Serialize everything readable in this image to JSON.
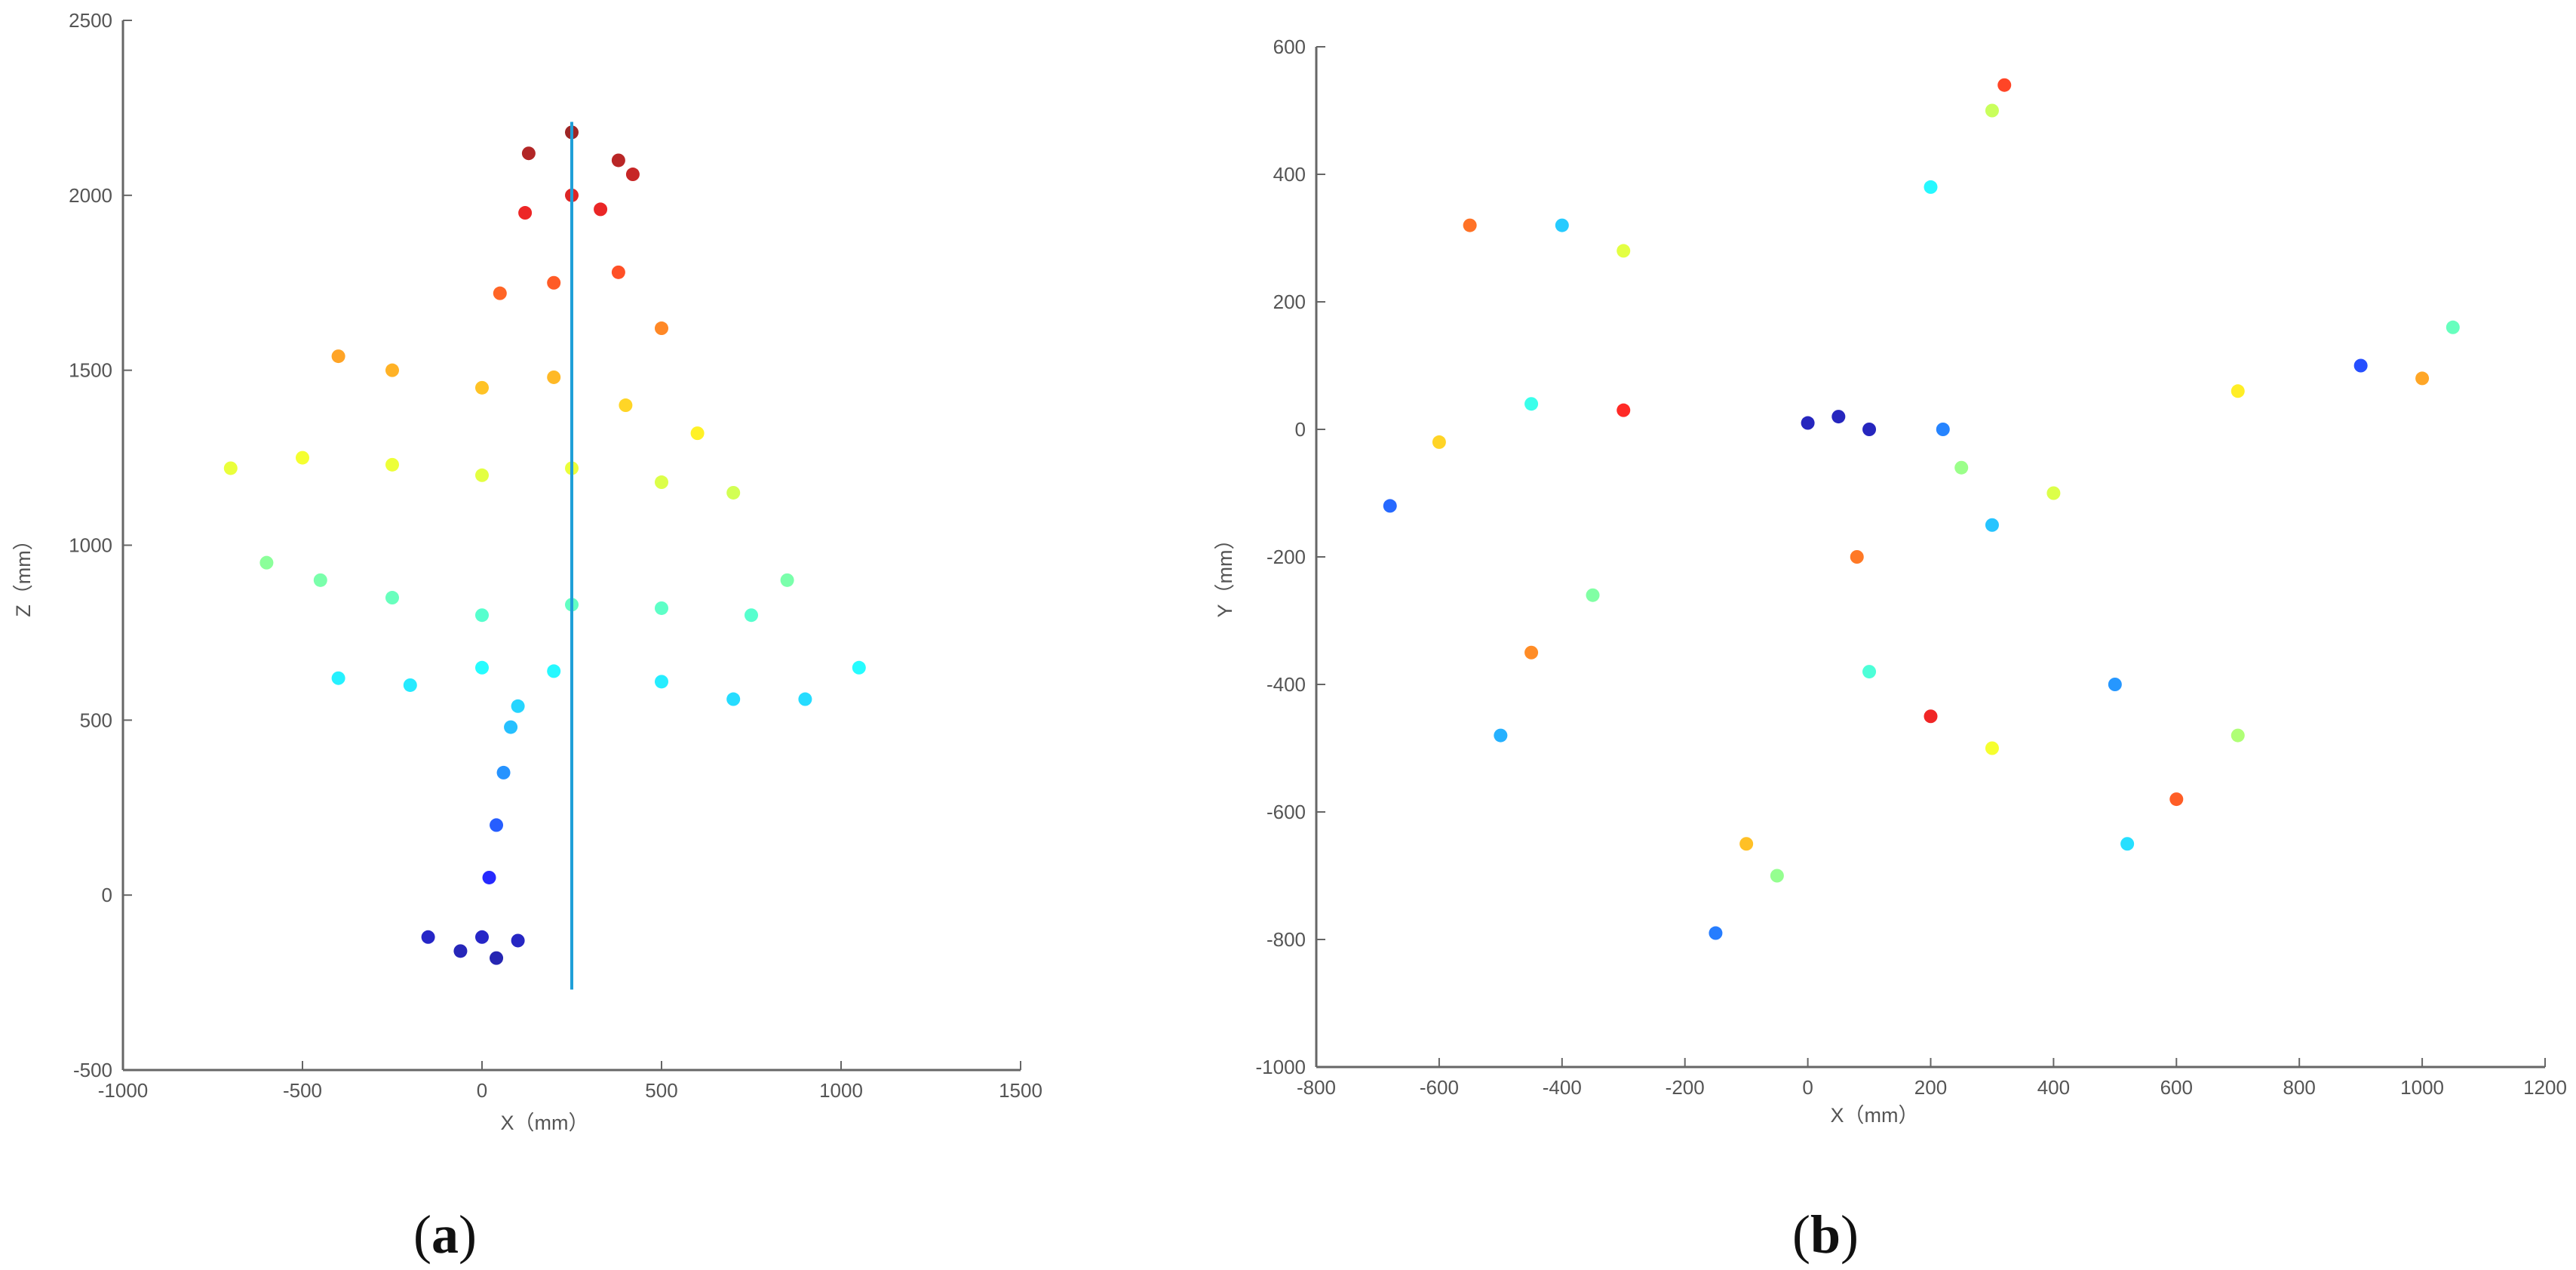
{
  "chart_data": [
    {
      "type": "scatter",
      "panel_label": "(a)",
      "panel_letter": "a",
      "xlabel": "X（mm）",
      "ylabel": "Z（mm）",
      "xlim": [
        -1000,
        1500
      ],
      "ylim": [
        -500,
        2500
      ],
      "xticks": [
        -1000,
        -500,
        0,
        500,
        1000,
        1500
      ],
      "yticks": [
        -500,
        0,
        500,
        1000,
        1500,
        2000,
        2500
      ],
      "grid": false,
      "colormap": "jet (by Z height)",
      "reference_line": {
        "x": 250,
        "y": [
          -270,
          2210
        ],
        "color": "#1f9fd8"
      },
      "series": [
        {
          "points": [
            [
              -150,
              -120
            ],
            [
              0,
              -120
            ],
            [
              100,
              -130
            ],
            [
              40,
              -180
            ],
            [
              -60,
              -160
            ],
            [
              20,
              50
            ],
            [
              40,
              200
            ],
            [
              60,
              350
            ],
            [
              80,
              480
            ],
            [
              100,
              540
            ],
            [
              -400,
              620
            ],
            [
              -200,
              600
            ],
            [
              0,
              650
            ],
            [
              200,
              640
            ],
            [
              500,
              610
            ],
            [
              700,
              560
            ],
            [
              900,
              560
            ],
            [
              1050,
              650
            ],
            [
              -600,
              950
            ],
            [
              -450,
              900
            ],
            [
              -250,
              850
            ],
            [
              0,
              800
            ],
            [
              250,
              830
            ],
            [
              500,
              820
            ],
            [
              750,
              800
            ],
            [
              850,
              900
            ],
            [
              -700,
              1220
            ],
            [
              -500,
              1250
            ],
            [
              -250,
              1230
            ],
            [
              0,
              1200
            ],
            [
              250,
              1220
            ],
            [
              500,
              1180
            ],
            [
              700,
              1150
            ],
            [
              -400,
              1540
            ],
            [
              -250,
              1500
            ],
            [
              0,
              1450
            ],
            [
              200,
              1480
            ],
            [
              400,
              1400
            ],
            [
              600,
              1320
            ],
            [
              50,
              1720
            ],
            [
              200,
              1750
            ],
            [
              380,
              1780
            ],
            [
              500,
              1620
            ],
            [
              120,
              1950
            ],
            [
              250,
              2000
            ],
            [
              330,
              1960
            ],
            [
              130,
              2120
            ],
            [
              250,
              2180
            ],
            [
              380,
              2100
            ],
            [
              420,
              2060
            ]
          ]
        }
      ]
    },
    {
      "type": "scatter",
      "panel_label": "(b)",
      "panel_letter": "b",
      "xlabel": "X（mm）",
      "ylabel": "Y（mm）",
      "xlim": [
        -800,
        1200
      ],
      "ylim": [
        -1000,
        600
      ],
      "xticks": [
        -800,
        -600,
        -400,
        -200,
        0,
        200,
        400,
        600,
        800,
        1000,
        1200
      ],
      "yticks": [
        -1000,
        -800,
        -600,
        -400,
        -200,
        0,
        200,
        400,
        600
      ],
      "grid": false,
      "colormap": "jet (by Z height)",
      "series": [
        {
          "points": [
            [
              0,
              10
            ],
            [
              50,
              20
            ],
            [
              100,
              0
            ],
            [
              220,
              0
            ],
            [
              250,
              -60
            ],
            [
              -550,
              320
            ],
            [
              -400,
              320
            ],
            [
              -300,
              280
            ],
            [
              -300,
              30
            ],
            [
              -450,
              40
            ],
            [
              -600,
              -20
            ],
            [
              -680,
              -120
            ],
            [
              -350,
              -260
            ],
            [
              -450,
              -350
            ],
            [
              -500,
              -480
            ],
            [
              300,
              500
            ],
            [
              320,
              540
            ],
            [
              200,
              380
            ],
            [
              700,
              60
            ],
            [
              900,
              100
            ],
            [
              1050,
              160
            ],
            [
              1000,
              80
            ],
            [
              500,
              -400
            ],
            [
              700,
              -480
            ],
            [
              600,
              -580
            ],
            [
              520,
              -650
            ],
            [
              300,
              -500
            ],
            [
              200,
              -450
            ],
            [
              100,
              -380
            ],
            [
              -100,
              -650
            ],
            [
              -150,
              -790
            ],
            [
              -50,
              -700
            ],
            [
              80,
              -200
            ],
            [
              300,
              -150
            ],
            [
              400,
              -100
            ]
          ]
        }
      ]
    }
  ]
}
